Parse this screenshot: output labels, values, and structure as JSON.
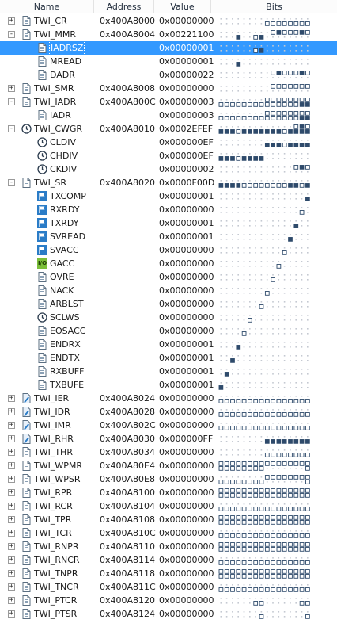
{
  "columns": {
    "name": "Name",
    "address": "Address",
    "value": "Value",
    "bits": "Bits"
  },
  "rows": [
    {
      "name": "TWI_CR",
      "address": "0x400A8000",
      "value": "0x00000000",
      "level": 0,
      "toggle": "+",
      "icon": "document-icon"
    },
    {
      "name": "TWI_MMR",
      "address": "0x400A8004",
      "value": "0x00221100",
      "level": 0,
      "toggle": "-",
      "icon": "document-icon"
    },
    {
      "name": "IADRSZ",
      "address": "",
      "value": "0x00000001",
      "level": 1,
      "toggle": "",
      "icon": "document-icon",
      "selected": true
    },
    {
      "name": "MREAD",
      "address": "",
      "value": "0x00000001",
      "level": 1,
      "toggle": "",
      "icon": "document-icon"
    },
    {
      "name": "DADR",
      "address": "",
      "value": "0x00000022",
      "level": 1,
      "toggle": "",
      "icon": "document-icon"
    },
    {
      "name": "TWI_SMR",
      "address": "0x400A8008",
      "value": "0x00000000",
      "level": 0,
      "toggle": "+",
      "icon": "document-icon"
    },
    {
      "name": "TWI_IADR",
      "address": "0x400A800C",
      "value": "0x00000003",
      "level": 0,
      "toggle": "-",
      "icon": "document-icon"
    },
    {
      "name": "IADR",
      "address": "",
      "value": "0x00000003",
      "level": 1,
      "toggle": "",
      "icon": "document-icon"
    },
    {
      "name": "TWI_CWGR",
      "address": "0x400A8010",
      "value": "0x0002EFEF",
      "level": 0,
      "toggle": "-",
      "icon": "clock-icon"
    },
    {
      "name": "CLDIV",
      "address": "",
      "value": "0x000000EF",
      "level": 1,
      "toggle": "",
      "icon": "clock-icon"
    },
    {
      "name": "CHDIV",
      "address": "",
      "value": "0x000000EF",
      "level": 1,
      "toggle": "",
      "icon": "clock-icon"
    },
    {
      "name": "CKDIV",
      "address": "",
      "value": "0x00000002",
      "level": 1,
      "toggle": "",
      "icon": "clock-icon"
    },
    {
      "name": "TWI_SR",
      "address": "0x400A8020",
      "value": "0x0000F00D",
      "level": 0,
      "toggle": "-",
      "icon": "document-icon"
    },
    {
      "name": "TXCOMP",
      "address": "",
      "value": "0x00000001",
      "level": 1,
      "toggle": "",
      "icon": "flag-icon"
    },
    {
      "name": "RXRDY",
      "address": "",
      "value": "0x00000000",
      "level": 1,
      "toggle": "",
      "icon": "flag-icon"
    },
    {
      "name": "TXRDY",
      "address": "",
      "value": "0x00000001",
      "level": 1,
      "toggle": "",
      "icon": "flag-icon"
    },
    {
      "name": "SVREAD",
      "address": "",
      "value": "0x00000001",
      "level": 1,
      "toggle": "",
      "icon": "flag-icon"
    },
    {
      "name": "SVACC",
      "address": "",
      "value": "0x00000000",
      "level": 1,
      "toggle": "",
      "icon": "flag-icon"
    },
    {
      "name": "GACC",
      "address": "",
      "value": "0x00000000",
      "level": 1,
      "toggle": "",
      "icon": "io-icon",
      "icon_text": "I/O"
    },
    {
      "name": "OVRE",
      "address": "",
      "value": "0x00000000",
      "level": 1,
      "toggle": "",
      "icon": "document-icon"
    },
    {
      "name": "NACK",
      "address": "",
      "value": "0x00000000",
      "level": 1,
      "toggle": "",
      "icon": "document-icon"
    },
    {
      "name": "ARBLST",
      "address": "",
      "value": "0x00000000",
      "level": 1,
      "toggle": "",
      "icon": "document-icon"
    },
    {
      "name": "SCLWS",
      "address": "",
      "value": "0x00000000",
      "level": 1,
      "toggle": "",
      "icon": "clock-icon"
    },
    {
      "name": "EOSACC",
      "address": "",
      "value": "0x00000000",
      "level": 1,
      "toggle": "",
      "icon": "document-icon"
    },
    {
      "name": "ENDRX",
      "address": "",
      "value": "0x00000001",
      "level": 1,
      "toggle": "",
      "icon": "document-icon"
    },
    {
      "name": "ENDTX",
      "address": "",
      "value": "0x00000001",
      "level": 1,
      "toggle": "",
      "icon": "document-icon"
    },
    {
      "name": "RXBUFF",
      "address": "",
      "value": "0x00000001",
      "level": 1,
      "toggle": "",
      "icon": "document-icon"
    },
    {
      "name": "TXBUFE",
      "address": "",
      "value": "0x00000001",
      "level": 1,
      "toggle": "",
      "icon": "document-icon"
    },
    {
      "name": "TWI_IER",
      "address": "0x400A8024",
      "value": "0x00000000",
      "level": 0,
      "toggle": "+",
      "icon": "write-icon"
    },
    {
      "name": "TWI_IDR",
      "address": "0x400A8028",
      "value": "0x00000000",
      "level": 0,
      "toggle": "+",
      "icon": "write-icon"
    },
    {
      "name": "TWI_IMR",
      "address": "0x400A802C",
      "value": "0x00000000",
      "level": 0,
      "toggle": "+",
      "icon": "write-icon"
    },
    {
      "name": "TWI_RHR",
      "address": "0x400A8030",
      "value": "0x000000FF",
      "level": 0,
      "toggle": "+",
      "icon": "write-icon"
    },
    {
      "name": "TWI_THR",
      "address": "0x400A8034",
      "value": "0x00000000",
      "level": 0,
      "toggle": "+",
      "icon": "document-icon"
    },
    {
      "name": "TWI_WPMR",
      "address": "0x400A80E4",
      "value": "0x00000000",
      "level": 0,
      "toggle": "+",
      "icon": "document-icon"
    },
    {
      "name": "TWI_WPSR",
      "address": "0x400A80E8",
      "value": "0x00000000",
      "level": 0,
      "toggle": "+",
      "icon": "document-icon"
    },
    {
      "name": "TWI_RPR",
      "address": "0x400A8100",
      "value": "0x00000000",
      "level": 0,
      "toggle": "+",
      "icon": "document-icon"
    },
    {
      "name": "TWI_RCR",
      "address": "0x400A8104",
      "value": "0x00000000",
      "level": 0,
      "toggle": "+",
      "icon": "document-icon"
    },
    {
      "name": "TWI_TPR",
      "address": "0x400A8108",
      "value": "0x00000000",
      "level": 0,
      "toggle": "+",
      "icon": "document-icon"
    },
    {
      "name": "TWI_TCR",
      "address": "0x400A810C",
      "value": "0x00000000",
      "level": 0,
      "toggle": "+",
      "icon": "document-icon"
    },
    {
      "name": "TWI_RNPR",
      "address": "0x400A8110",
      "value": "0x00000000",
      "level": 0,
      "toggle": "+",
      "icon": "document-icon"
    },
    {
      "name": "TWI_RNCR",
      "address": "0x400A8114",
      "value": "0x00000000",
      "level": 0,
      "toggle": "+",
      "icon": "document-icon"
    },
    {
      "name": "TWI_TNPR",
      "address": "0x400A8118",
      "value": "0x00000000",
      "level": 0,
      "toggle": "+",
      "icon": "document-icon"
    },
    {
      "name": "TWI_TNCR",
      "address": "0x400A811C",
      "value": "0x00000000",
      "level": 0,
      "toggle": "+",
      "icon": "document-icon"
    },
    {
      "name": "TWI_PTCR",
      "address": "0x400A8120",
      "value": "0x00000000",
      "level": 0,
      "toggle": "+",
      "icon": "document-icon"
    },
    {
      "name": "TWI_PTSR",
      "address": "0x400A8124",
      "value": "0x00000000",
      "level": 0,
      "toggle": "+",
      "icon": "document-icon"
    }
  ],
  "colors": {
    "selection": "#3399ff",
    "bit_set": "#2e4a6b",
    "bit_clear_border": "#2e4a6b",
    "bit_unused": "#c4c9d1",
    "icon_blue": "#2a7cc7",
    "icon_io": "#7bbf3a"
  }
}
